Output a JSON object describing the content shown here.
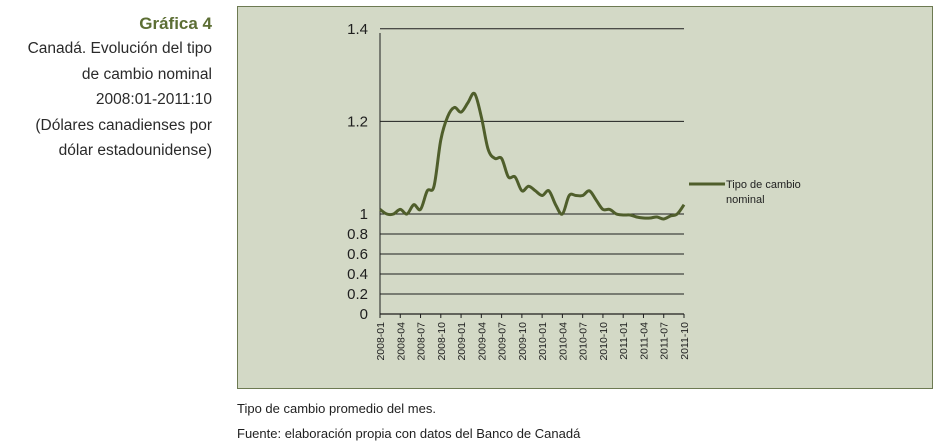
{
  "caption": {
    "number": "Gráfica 4",
    "lines": [
      "Canadá. Evolución del tipo",
      "de cambio nominal",
      "2008:01-2011:10",
      "(Dólares canadienses por",
      "dólar estadounidense)"
    ]
  },
  "notes": {
    "note": "Tipo de cambio promedio del mes.",
    "source": "Fuente: elaboración propia con datos del Banco de Canadá"
  },
  "colors": {
    "line": "#4f5e2b",
    "panel": "#d3d9c6",
    "title": "#5c6e34"
  },
  "chart_data": {
    "type": "line",
    "title": "",
    "xlabel": "",
    "ylabel": "",
    "legend_position": "right",
    "grid": "horizontal",
    "y_ticks": [
      {
        "value": 1.4,
        "label": "1.4"
      },
      {
        "value": 1.2,
        "label": "1.2"
      },
      {
        "value": 1.0,
        "label": "1"
      },
      {
        "value": 0.8,
        "label": "0.8"
      },
      {
        "value": 0.6,
        "label": "0.6"
      },
      {
        "value": 0.4,
        "label": "0.4"
      },
      {
        "value": 0.2,
        "label": "0.2"
      },
      {
        "value": 0,
        "label": "0"
      }
    ],
    "x_tick_labels": [
      "2008-01",
      "2008-04",
      "2008-07",
      "2008-10",
      "2009-01",
      "2009-04",
      "2009-07",
      "2009-10",
      "2010-01",
      "2010-04",
      "2010-07",
      "2010-10",
      "2011-01",
      "2011-04",
      "2011-07",
      "2011-10"
    ],
    "series": [
      {
        "name": "Tipo de cambio nominal",
        "x": [
          "2008-01",
          "2008-02",
          "2008-03",
          "2008-04",
          "2008-05",
          "2008-06",
          "2008-07",
          "2008-08",
          "2008-09",
          "2008-10",
          "2008-11",
          "2008-12",
          "2009-01",
          "2009-02",
          "2009-03",
          "2009-04",
          "2009-05",
          "2009-06",
          "2009-07",
          "2009-08",
          "2009-09",
          "2009-10",
          "2009-11",
          "2009-12",
          "2010-01",
          "2010-02",
          "2010-03",
          "2010-04",
          "2010-05",
          "2010-06",
          "2010-07",
          "2010-08",
          "2010-09",
          "2010-10",
          "2010-11",
          "2010-12",
          "2011-01",
          "2011-02",
          "2011-03",
          "2011-04",
          "2011-05",
          "2011-06",
          "2011-07",
          "2011-08",
          "2011-09",
          "2011-10"
        ],
        "values": [
          1.01,
          1.0,
          1.0,
          1.01,
          1.0,
          1.02,
          1.01,
          1.05,
          1.06,
          1.16,
          1.21,
          1.23,
          1.22,
          1.24,
          1.26,
          1.21,
          1.14,
          1.12,
          1.12,
          1.08,
          1.08,
          1.05,
          1.06,
          1.05,
          1.04,
          1.05,
          1.02,
          1.0,
          1.04,
          1.04,
          1.04,
          1.05,
          1.03,
          1.01,
          1.01,
          1.0,
          0.99,
          0.99,
          0.97,
          0.96,
          0.96,
          0.97,
          0.95,
          0.98,
          1.0,
          1.02
        ]
      }
    ]
  }
}
